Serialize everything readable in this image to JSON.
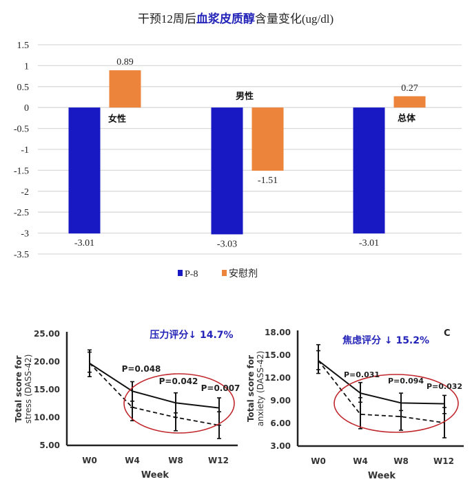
{
  "chart_data": [
    {
      "type": "bar",
      "title_parts": [
        {
          "text": "干预12周后",
          "highlight": false
        },
        {
          "text": "血浆皮质醇",
          "highlight": true
        },
        {
          "text": "含量变化(ug/dl)",
          "highlight": false
        }
      ],
      "categories": [
        "女性",
        "男性",
        "总体"
      ],
      "series": [
        {
          "name": "P-8",
          "color": "#1919c4",
          "values": [
            -3.01,
            -3.03,
            -3.01
          ],
          "labels": [
            "-3.01",
            "-3.03",
            "-3.01"
          ]
        },
        {
          "name": "安慰剂",
          "color": "#ed843c",
          "values": [
            0.89,
            -1.51,
            0.27
          ],
          "labels": [
            "0.89",
            "-1.51",
            "0.27"
          ]
        }
      ],
      "ylim": [
        -3.5,
        1.5
      ],
      "yticks": [
        "1.5",
        "1",
        "0.5",
        "0",
        "-0.5",
        "-1",
        "-1.5",
        "-2",
        "-2.5",
        "-3",
        "-3.5"
      ],
      "ytick_values": [
        1.5,
        1,
        0.5,
        0,
        -0.5,
        -1,
        -1.5,
        -2,
        -2.5,
        -3,
        -3.5
      ],
      "grid": true,
      "legend": "bottom-center",
      "highlight_color": "#2424b8"
    },
    {
      "type": "line",
      "annotation": "压力评分↓ 14.7%",
      "xlabel": "Week",
      "ylabel_line1": "Total score for",
      "ylabel_line2": "stress (DASS-42)",
      "categories": [
        "W0",
        "W4",
        "W8",
        "W12"
      ],
      "yticks": [
        "25.00",
        "20.00",
        "15.00",
        "10.00",
        "5.00"
      ],
      "ytick_values": [
        25,
        20,
        15,
        10,
        5
      ],
      "ylim": [
        5,
        25
      ],
      "series": [
        {
          "name": "P-8",
          "style": "solid",
          "values": [
            19.6,
            14.6,
            12.5,
            11.6
          ]
        },
        {
          "name": "安慰剂",
          "style": "dashed",
          "values": [
            19.6,
            11.7,
            9.9,
            8.5
          ]
        }
      ],
      "error_bars": [
        {
          "low": 17.2,
          "high": 22.0,
          "marks": [
            18.0,
            21.6
          ]
        },
        {
          "low": 9.3,
          "high": 16.3,
          "marks": [
            12.8,
            11.7
          ]
        },
        {
          "low": 7.5,
          "high": 14.3,
          "marks": [
            10.7,
            9.9
          ]
        },
        {
          "low": 6.1,
          "high": 13.4,
          "marks": [
            10.9,
            8.5
          ]
        }
      ],
      "p_values": [
        "",
        "P=0.048",
        "P=0.042",
        "P=0.007"
      ],
      "annotation_color": "#2424b8",
      "ellipse_color": "#c0262b"
    },
    {
      "type": "line",
      "annotation": "焦虑评分 ↓ 15.2%",
      "panel_label": "C",
      "xlabel": "Week",
      "ylabel_line1": "Total score for",
      "ylabel_line2": "anxiety (DASS-42)",
      "categories": [
        "W0",
        "W4",
        "W8",
        "W12"
      ],
      "yticks": [
        "18.00",
        "15.00",
        "12.00",
        "9.00",
        "6.00",
        "3.00"
      ],
      "ytick_values": [
        18,
        15,
        12,
        9,
        6,
        3
      ],
      "ylim": [
        3,
        18
      ],
      "series": [
        {
          "name": "P-8",
          "style": "solid",
          "values": [
            14.2,
            9.9,
            8.6,
            8.5
          ]
        },
        {
          "name": "安慰剂",
          "style": "dashed",
          "values": [
            14.2,
            7.1,
            6.8,
            6.0
          ]
        }
      ],
      "error_bars": [
        {
          "low": 12.5,
          "high": 16.3,
          "marks": [
            13.0,
            15.5
          ]
        },
        {
          "low": 5.2,
          "high": 11.3,
          "marks": [
            8.7,
            9.3
          ]
        },
        {
          "low": 5.0,
          "high": 9.9,
          "marks": [
            6.8,
            7.6
          ]
        },
        {
          "low": 4.0,
          "high": 9.6,
          "marks": [
            7.2,
            8.0
          ]
        }
      ],
      "p_values": [
        "",
        "P=0.031",
        "P=0.094",
        "P=0.032"
      ],
      "annotation_color": "#2424b8",
      "ellipse_color": "#c0262b"
    }
  ]
}
